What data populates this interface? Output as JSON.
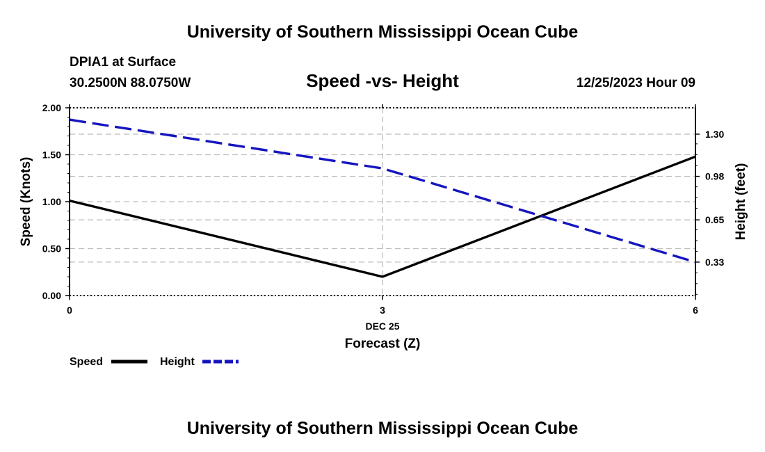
{
  "header": {
    "title": "University of Southern Mississippi Ocean Cube",
    "station": "DPIA1 at Surface",
    "location": "30.2500N  88.0750W",
    "chart_title": "Speed -vs- Height",
    "date": "12/25/2023 Hour 09"
  },
  "footer": {
    "title": "University of Southern Mississippi Ocean Cube"
  },
  "colors": {
    "speed": "#000000",
    "height": "#1515c0",
    "grid": "#bdbdbd"
  },
  "chart_data": {
    "type": "line",
    "title": "Speed -vs- Height",
    "x": [
      0,
      3,
      6
    ],
    "x_tick_labels": [
      "0",
      "3",
      "6"
    ],
    "x_date_label": "DEC 25",
    "xlabel": "Forecast (Z)",
    "xlim": [
      0,
      6
    ],
    "ylabel": "Speed (Knots)",
    "ylim": [
      0,
      2
    ],
    "y_ticks": [
      0,
      0.5,
      1,
      1.5,
      2
    ],
    "y_tick_labels": [
      "0.00",
      "0.50",
      "1.00",
      "1.50",
      "2.00"
    ],
    "y2label": "Height (feet)",
    "y2lim": [
      0.0763,
      1.5
    ],
    "y2_ticks": [
      0.33,
      0.65,
      0.98,
      1.3
    ],
    "y2_tick_labels": [
      "0.33",
      "0.65",
      "0.98",
      "1.30"
    ],
    "grid": true,
    "legend_position": "bottom-left",
    "series": [
      {
        "name": "Speed",
        "axis": "left",
        "style": "solid",
        "values": [
          1.01,
          0.2,
          1.48
        ]
      },
      {
        "name": "Height",
        "axis": "right",
        "style": "dashed",
        "values": [
          1.41,
          1.04,
          0.33
        ]
      }
    ]
  }
}
